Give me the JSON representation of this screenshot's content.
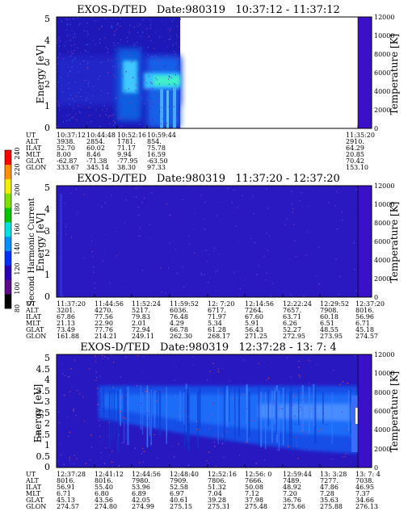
{
  "colorbar": {
    "label": "Second Harmonic Current",
    "ticks": [
      "80",
      "100",
      "120",
      "140",
      "160",
      "180",
      "200",
      "220",
      "240"
    ],
    "range": [
      80,
      240
    ],
    "colors": [
      "#000000",
      "#5a0a8a",
      "#2a00b8",
      "#0030ff",
      "#0090ff",
      "#00e0e0",
      "#00c800",
      "#80e000",
      "#f0f000",
      "#ff9000",
      "#ff0000"
    ]
  },
  "legend_rows": [
    "UT",
    "ALT",
    "ILAT",
    "MLT",
    "GLAT",
    "GLON"
  ],
  "chart_data": [
    {
      "type": "heatmap",
      "title": "EXOS-D/TED   Date:980319   10:37:12 - 11:37:12",
      "ylabel": "Energy [eV]",
      "ylabel_right": "Temperature [K]",
      "yticks": [
        "0",
        "1",
        "2",
        "3",
        "4",
        "5"
      ],
      "ylim": [
        0,
        5.2
      ],
      "yticks_right": [
        "0",
        "2000",
        "4000",
        "6000",
        "8000",
        "10000",
        "12000"
      ],
      "ylim_right": [
        0,
        12000
      ],
      "columns": [
        {
          "UT": "10:37:12",
          "ALT": "3938.",
          "ILAT": "52.70",
          "MLT": "8.00",
          "GLAT": "-62.87",
          "GLON": "333.67"
        },
        {
          "UT": "10:44:48",
          "ALT": "2854.",
          "ILAT": "60.02",
          "MLT": "8.46",
          "GLAT": "-71.38",
          "GLON": "345.14"
        },
        {
          "UT": "10:52:16",
          "ALT": "1781.",
          "ILAT": "71.17",
          "MLT": "9.94",
          "GLAT": "-77.95",
          "GLON": "38.30"
        },
        {
          "UT": "10:59:44",
          "ALT": "854.",
          "ILAT": "75.78",
          "MLT": "16.59",
          "GLAT": "-63.50",
          "GLON": "97.33"
        },
        {
          "UT": "11:35:20",
          "ALT": "2910.",
          "ILAT": "64.29",
          "MLT": "20.85",
          "GLAT": "70.42",
          "GLON": "153.10"
        }
      ]
    },
    {
      "type": "heatmap",
      "title": "EXOS-D/TED   Date:980319   11:37:20 - 12:37:20",
      "ylabel": "Energy [eV]",
      "ylabel_right": "Temperature [K]",
      "yticks": [
        "0",
        "1",
        "2",
        "3",
        "4",
        "5"
      ],
      "ylim": [
        0,
        5.2
      ],
      "yticks_right": [
        "0",
        "2000",
        "4000",
        "6000",
        "8000",
        "10000",
        "12000"
      ],
      "ylim_right": [
        0,
        12000
      ],
      "columns": [
        {
          "UT": "11:37:20",
          "ALT": "3201.",
          "ILAT": "67.86",
          "MLT": "21.13",
          "GLAT": "73.49",
          "GLON": "161.88"
        },
        {
          "UT": "11:44:56",
          "ALT": "4270.",
          "ILAT": "77.56",
          "MLT": "22.90",
          "GLAT": "77.76",
          "GLON": "214.21"
        },
        {
          "UT": "11:52:24",
          "ALT": "5217.",
          "ILAT": "79.83",
          "MLT": "2.01",
          "GLAT": "72.94",
          "GLON": "249.11"
        },
        {
          "UT": "11:59:52",
          "ALT": "6036.",
          "ILAT": "76.48",
          "MLT": "4.29",
          "GLAT": "66.78",
          "GLON": "262.30"
        },
        {
          "UT": "12: 7:20",
          "ALT": "6717.",
          "ILAT": "71.97",
          "MLT": "5.34",
          "GLAT": "61.28",
          "GLON": "268.17"
        },
        {
          "UT": "12:14:56",
          "ALT": "7264.",
          "ILAT": "67.60",
          "MLT": "5.91",
          "GLAT": "56.43",
          "GLON": "271.25"
        },
        {
          "UT": "12:22:24",
          "ALT": "7657.",
          "ILAT": "63.71",
          "MLT": "6.26",
          "GLAT": "52.27",
          "GLON": "272.95"
        },
        {
          "UT": "12:29:52",
          "ALT": "7908.",
          "ILAT": "60.18",
          "MLT": "6.51",
          "GLAT": "48.55",
          "GLON": "273.95"
        },
        {
          "UT": "12:37:20",
          "ALT": "8016.",
          "ILAT": "56.96",
          "MLT": "6.71",
          "GLAT": "45.18",
          "GLON": "274.57"
        }
      ]
    },
    {
      "type": "heatmap",
      "title": "EXOS-D/TED   Date:980319   12:37:28 - 13: 7: 4",
      "ylabel": "Energy [eV]",
      "ylabel_right": "Temperature [K]",
      "yticks": [
        "0",
        "0.5",
        "1",
        "1.5",
        "2",
        "2.5",
        "3",
        "3.5",
        "4",
        "4.5",
        "5"
      ],
      "ylim": [
        0,
        5.2
      ],
      "yticks_right": [
        "0",
        "2000",
        "4000",
        "6000",
        "8000",
        "10000",
        "12000"
      ],
      "ylim_right": [
        0,
        12000
      ],
      "columns": [
        {
          "UT": "12:37:28",
          "ALT": "8016.",
          "ILAT": "56.91",
          "MLT": "6.71",
          "GLAT": "45.13",
          "GLON": "274.57"
        },
        {
          "UT": "12:41:12",
          "ALT": "8016.",
          "ILAT": "55.40",
          "MLT": "6.80",
          "GLAT": "43.56",
          "GLON": "274.80"
        },
        {
          "UT": "12:44:56",
          "ALT": "7980.",
          "ILAT": "53.96",
          "MLT": "6.89",
          "GLAT": "42.05",
          "GLON": "274.99"
        },
        {
          "UT": "12:48:40",
          "ALT": "7909.",
          "ILAT": "52.58",
          "MLT": "6.97",
          "GLAT": "40.61",
          "GLON": "275.15"
        },
        {
          "UT": "12:52:16",
          "ALT": "7806.",
          "ILAT": "51.32",
          "MLT": "7.04",
          "GLAT": "39.28",
          "GLON": "275.31"
        },
        {
          "UT": "12:56: 0",
          "ALT": "7666.",
          "ILAT": "50.08",
          "MLT": "7.12",
          "GLAT": "37.98",
          "GLON": "275.48"
        },
        {
          "UT": "12:59:44",
          "ALT": "7489.",
          "ILAT": "48.92",
          "MLT": "7.20",
          "GLAT": "36.76",
          "GLON": "275.66"
        },
        {
          "UT": "13: 3:28",
          "ALT": "7277.",
          "ILAT": "47.86",
          "MLT": "7.28",
          "GLAT": "35.63",
          "GLON": "275.88"
        },
        {
          "UT": "13: 7: 4",
          "ALT": "7038.",
          "ILAT": "46.95",
          "MLT": "7.37",
          "GLAT": "34.66",
          "GLON": "276.13"
        }
      ]
    }
  ]
}
